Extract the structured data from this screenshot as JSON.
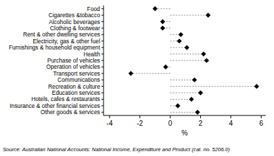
{
  "chart_data": {
    "type": "dot",
    "orientation": "horizontal",
    "categories": [
      "Food",
      "Cigarettes &tobacco",
      "Alcoholic beverages",
      "Clothing & footwear",
      "Rent & other dwelling services",
      "Electricity, gas & other fuel",
      "Furnishings & household equipment",
      "Health",
      "Purchase of vehicles",
      "Operation of vehicles",
      "Transport services",
      "Communications",
      "Recreation & culture",
      "Education services",
      "Hotels, cafes & restaurants",
      "Insurance & other financial services",
      "Other goods & services"
    ],
    "values": [
      -1.0,
      2.5,
      -0.5,
      -0.5,
      0.7,
      0.6,
      1.1,
      2.2,
      2.4,
      -0.3,
      -2.6,
      1.6,
      5.7,
      2.0,
      1.4,
      0.5,
      1.8
    ],
    "color": "#000000",
    "marker": "diamond",
    "line_style": "dashed",
    "xlim": [
      -4.4,
      6.3
    ],
    "xticks": [
      -4,
      -2,
      0,
      2,
      4,
      6
    ],
    "x_label": "%",
    "source": "Source: Australian National Accounts: National Income, Expenditure and Product (cat. no. 5206.0)"
  }
}
